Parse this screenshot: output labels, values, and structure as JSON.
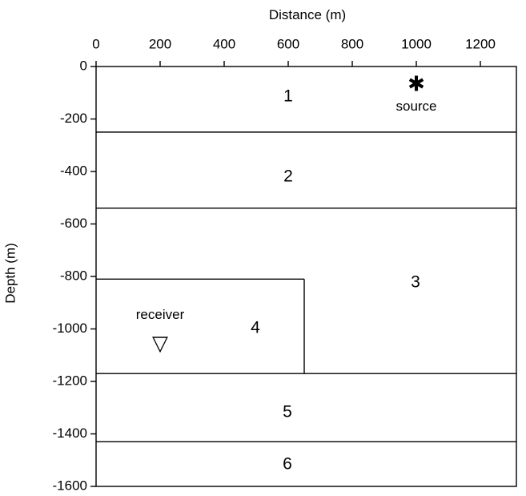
{
  "figure": {
    "x_axis_title": "Distance (m)",
    "y_axis_title": "Depth (m)",
    "x_ticks": [
      "0",
      "200",
      "400",
      "600",
      "800",
      "1000",
      "1200"
    ],
    "y_ticks": [
      "0",
      "-200",
      "-400",
      "-600",
      "-800",
      "-1000",
      "-1200",
      "-1400",
      "-1600"
    ],
    "layers": [
      {
        "label": "1",
        "top_depth": 0,
        "bottom_depth": -250
      },
      {
        "label": "2",
        "top_depth": -250,
        "bottom_depth": -540
      },
      {
        "label": "3",
        "top_depth": -540,
        "bottom_depth": -1170
      },
      {
        "label": "4",
        "top_depth": -810,
        "bottom_depth": -1170,
        "x_start": 0,
        "x_end": 650
      },
      {
        "label": "5",
        "top_depth": -1170,
        "bottom_depth": -1430
      },
      {
        "label": "6",
        "top_depth": -1430,
        "bottom_depth": -1600
      }
    ],
    "source": {
      "label": "source",
      "symbol": "✱",
      "distance": 1000,
      "depth": -60
    },
    "receiver": {
      "label": "receiver",
      "symbol": "▽",
      "distance": 250,
      "depth": -1050
    },
    "line_color": "#000000"
  }
}
